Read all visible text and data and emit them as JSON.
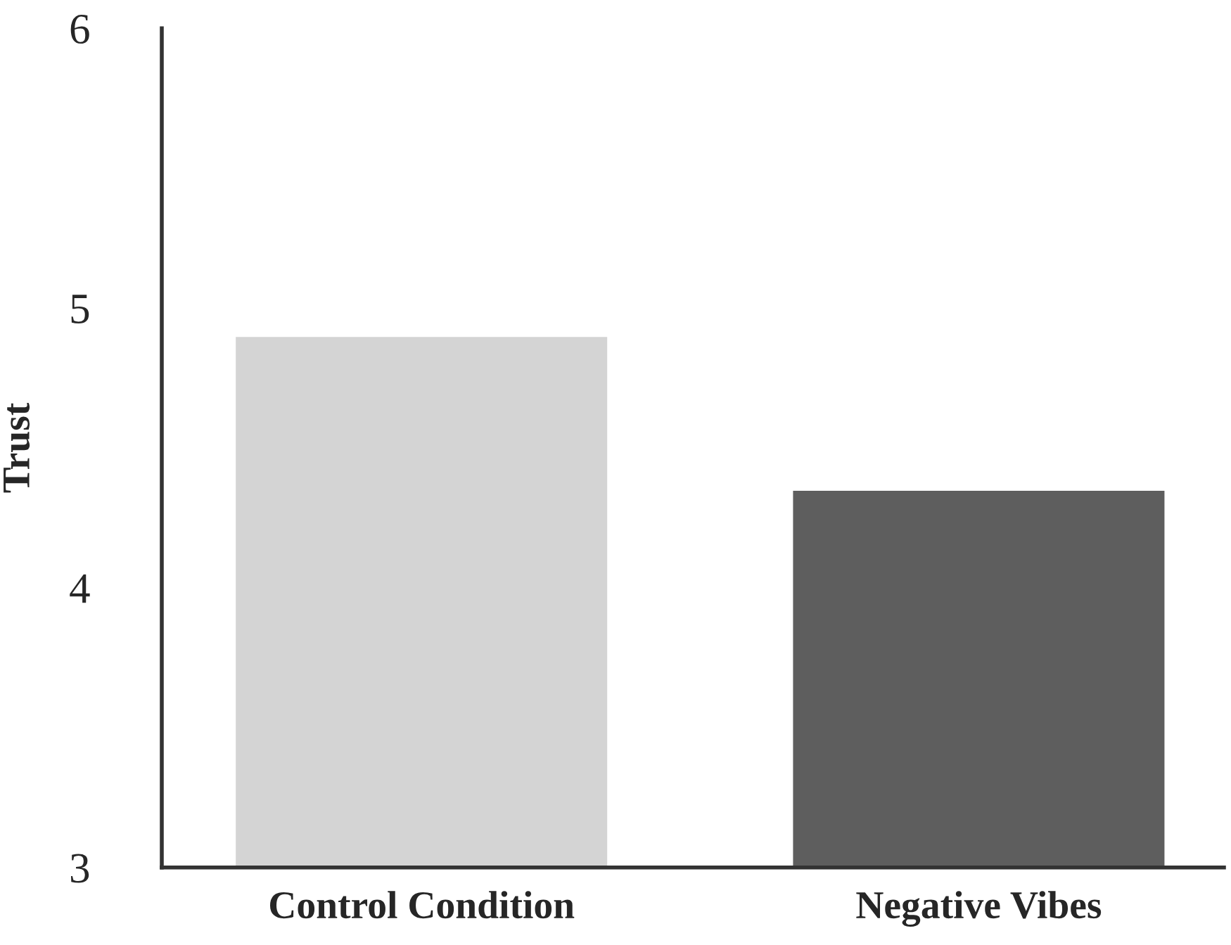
{
  "chart_data": {
    "type": "bar",
    "ylabel": "Trust",
    "categories": [
      "Control Condition",
      "Negative Vibes"
    ],
    "values": [
      4.9,
      4.35
    ],
    "colors": [
      "#d4d4d4",
      "#5e5e5e"
    ],
    "ylim": [
      3,
      6
    ],
    "yticks": [
      3,
      4,
      5,
      6
    ],
    "grid": false
  }
}
